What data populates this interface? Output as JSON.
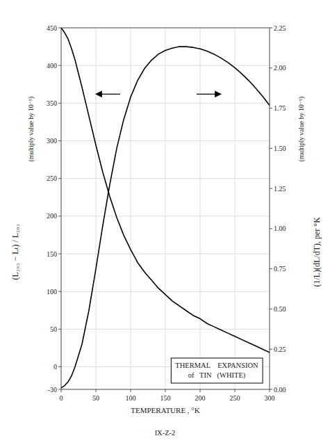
{
  "chart_data": {
    "type": "line",
    "title": "THERMAL    EXPANSION",
    "subtitle": "of   TIN   (WHITE)",
    "xlabel": "TEMPERATURE , °K",
    "ylabel": "(L₂₉₃ − Lₜ) / L₂₉₃",
    "ylabel_note": "(multiply value by 10⁻⁵)",
    "y2label": "(1/L)(dL/dT), per °K",
    "y2label_note": "(multiply value by 10⁻⁵)",
    "footer": "IX-Z-2",
    "grid": true,
    "xlim": [
      0,
      300
    ],
    "xticks": [
      0,
      50,
      100,
      150,
      200,
      250,
      300
    ],
    "ylim": [
      -30,
      450
    ],
    "yticks": [
      -30,
      0,
      50,
      100,
      150,
      200,
      250,
      300,
      350,
      400,
      450
    ],
    "y2lim": [
      0,
      2.25
    ],
    "y2ticks": [
      {
        "value": 0,
        "label": "0.00"
      },
      0.25,
      {
        "value": 0.5,
        "label": "0.50"
      },
      0.75,
      {
        "value": 1,
        "label": "1.00"
      },
      1.25,
      {
        "value": 1.5,
        "label": "1.50"
      },
      1.75,
      {
        "value": 2,
        "label": "2.00"
      },
      2.25
    ],
    "x": [
      0,
      5,
      10,
      15,
      20,
      30,
      40,
      50,
      60,
      70,
      80,
      90,
      100,
      110,
      120,
      130,
      140,
      150,
      160,
      170,
      180,
      190,
      200,
      210,
      220,
      230,
      240,
      250,
      260,
      270,
      280,
      290,
      300
    ],
    "series": [
      {
        "color": "#000000",
        "values": [
          -28,
          -25,
          -20,
          -12,
          0,
          30,
          75,
          130,
          188,
          242,
          290,
          328,
          358,
          380,
          396,
          407,
          415,
          420,
          423,
          425,
          425,
          424,
          422,
          419,
          415,
          410,
          404,
          397,
          389,
          380,
          370,
          359,
          347
        ]
      },
      {
        "color": "#000000",
        "axis": "y2",
        "values": [
          2.25,
          2.22,
          2.18,
          2.12,
          2.05,
          1.88,
          1.7,
          1.52,
          1.35,
          1.2,
          1.07,
          0.96,
          0.87,
          0.79,
          0.73,
          0.68,
          0.63,
          0.59,
          0.55,
          0.52,
          0.49,
          0.46,
          0.44,
          0.41,
          0.39,
          0.37,
          0.35,
          0.33,
          0.31,
          0.29,
          0.27,
          0.25,
          0.23
        ]
      }
    ],
    "arrows": [
      {
        "x_start": 85,
        "x_end": 50,
        "y": 362
      },
      {
        "x_start": 195,
        "x_end": 230,
        "y": 362
      }
    ]
  }
}
